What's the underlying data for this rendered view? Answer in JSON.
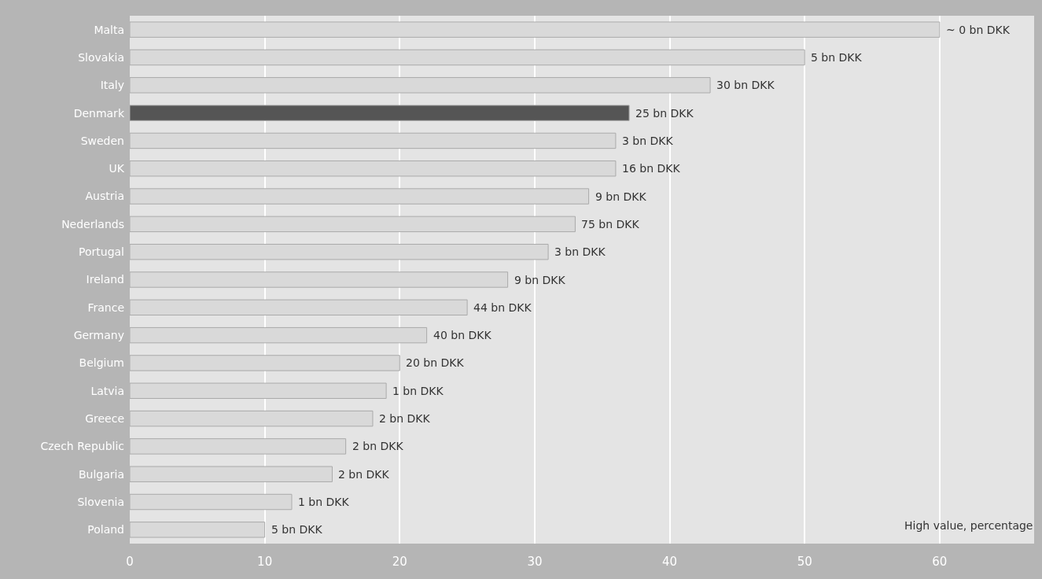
{
  "chart_data": {
    "type": "bar",
    "orientation": "horizontal",
    "categories": [
      "Malta",
      "Slovakia",
      "Italy",
      "Denmark",
      "Sweden",
      "UK",
      "Austria",
      "Nederlands",
      "Portugal",
      "Ireland",
      "France",
      "Germany",
      "Belgium",
      "Latvia",
      "Greece",
      "Czech Republic",
      "Bulgaria",
      "Slovenia",
      "Poland"
    ],
    "values": [
      60,
      50,
      43,
      37,
      36,
      36,
      34,
      33,
      31,
      28,
      25,
      22,
      20,
      19,
      18,
      16,
      15,
      12,
      10
    ],
    "colors": [
      "#d9d9d9",
      "#d9d9d9",
      "#d9d9d9",
      "#555555",
      "#d9d9d9",
      "#d9d9d9",
      "#d9d9d9",
      "#d9d9d9",
      "#d9d9d9",
      "#d9d9d9",
      "#d9d9d9",
      "#d9d9d9",
      "#d9d9d9",
      "#d9d9d9",
      "#d9d9d9",
      "#d9d9d9",
      "#d9d9d9",
      "#d9d9d9",
      "#d9d9d9"
    ],
    "xlim": [
      0,
      67
    ],
    "xticks": [
      0,
      10,
      20,
      30,
      40,
      50,
      60
    ],
    "grid": "x",
    "annotations": [
      {
        "text": "~ 0 bn DKK",
        "x": 60,
        "y": "Malta"
      },
      {
        "text": "5 bn DKK",
        "x": 50,
        "y": "Slovakia"
      },
      {
        "text": "30 bn DKK",
        "x": 43,
        "y": "Italy"
      },
      {
        "text": "25 bn DKK",
        "x": 37,
        "y": "Denmark"
      },
      {
        "text": "3 bn DKK",
        "x": 36,
        "y": "Sweden"
      },
      {
        "text": "16 bn DKK",
        "x": 36,
        "y": "UK"
      },
      {
        "text": "9 bn DKK",
        "x": 34,
        "y": "Austria"
      },
      {
        "text": "75 bn DKK",
        "x": 33,
        "y": "Nederlands"
      },
      {
        "text": "3 bn DKK",
        "x": 31,
        "y": "Portugal"
      },
      {
        "text": "9 bn DKK",
        "x": 28,
        "y": "Ireland"
      },
      {
        "text": "44 bn DKK",
        "x": 25,
        "y": "France"
      },
      {
        "text": "40 bn DKK",
        "x": 22,
        "y": "Germany"
      },
      {
        "text": "20 bn DKK",
        "x": 20,
        "y": "Belgium"
      },
      {
        "text": "1 bn DKK",
        "x": 19,
        "y": "Latvia"
      },
      {
        "text": "2 bn DKK",
        "x": 18,
        "y": "Greece"
      },
      {
        "text": "2 bn DKK",
        "x": 16,
        "y": "Czech Republic"
      },
      {
        "text": "2 bn DKK",
        "x": 15,
        "y": "Bulgaria"
      },
      {
        "text": "1 bn DKK",
        "x": 12,
        "y": "Slovenia"
      },
      {
        "text": "5 bn DKK",
        "x": 10,
        "y": "Poland"
      },
      "High value, percentage"
    ]
  }
}
